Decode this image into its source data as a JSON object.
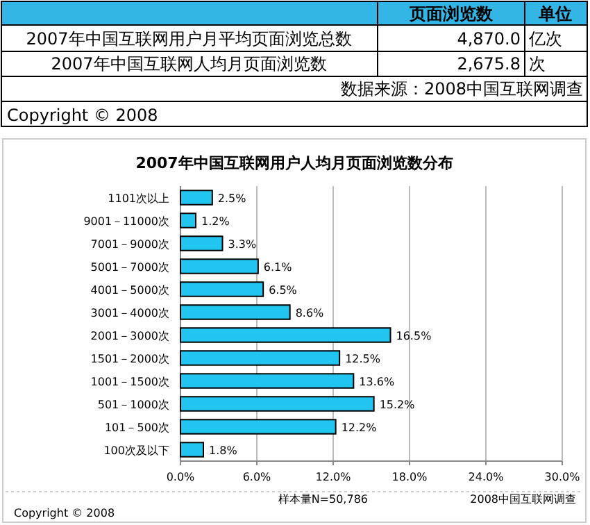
{
  "chart_data": [
    {
      "type": "other",
      "annotations": [
        "页面浏览数",
        "单位",
        "2007年中国互联网用户月平均页面浏览总数",
        "4,870.0",
        "亿次",
        "2007年中国互联网人均月页面浏览数",
        "2,675.8",
        "次",
        "数据来源：2008中国互联网调查",
        "Copyright © 2008"
      ]
    },
    {
      "type": "bar",
      "orientation": "horizontal",
      "title": "2007年中国互联网用户人均月页面浏览数分布",
      "categories": [
        "1101次以上",
        "9001－11000次",
        "7001－9000次",
        "5001－7000次",
        "4001－5000次",
        "3001－4000次",
        "2001－3000次",
        "1501－2000次",
        "1001－1500次",
        "501－1000次",
        "101－500次",
        "100次及以下"
      ],
      "values": [
        2.5,
        1.2,
        3.3,
        6.1,
        6.5,
        8.6,
        16.5,
        12.5,
        13.6,
        15.2,
        12.2,
        1.8
      ],
      "value_labels": [
        "2.5%",
        "1.2%",
        "3.3%",
        "6.1%",
        "6.5%",
        "8.6%",
        "16.5%",
        "12.5%",
        "13.6%",
        "15.2%",
        "12.2%",
        "1.8%"
      ],
      "color": "#22c4f0",
      "xlim": [
        0,
        30
      ],
      "xticks": [
        {
          "value": 0,
          "label": "0.0%"
        },
        {
          "value": 6,
          "label": "6.0%"
        },
        {
          "value": 12,
          "label": "12.0%"
        },
        {
          "value": 18,
          "label": "18.0%"
        },
        {
          "value": 24,
          "label": "24.0%"
        },
        {
          "value": 30,
          "label": "30.0%"
        }
      ],
      "grid": "x",
      "annotations": [
        "样本量N=50,786",
        "2008中国互联网调查",
        "Copyright © 2008"
      ]
    }
  ]
}
